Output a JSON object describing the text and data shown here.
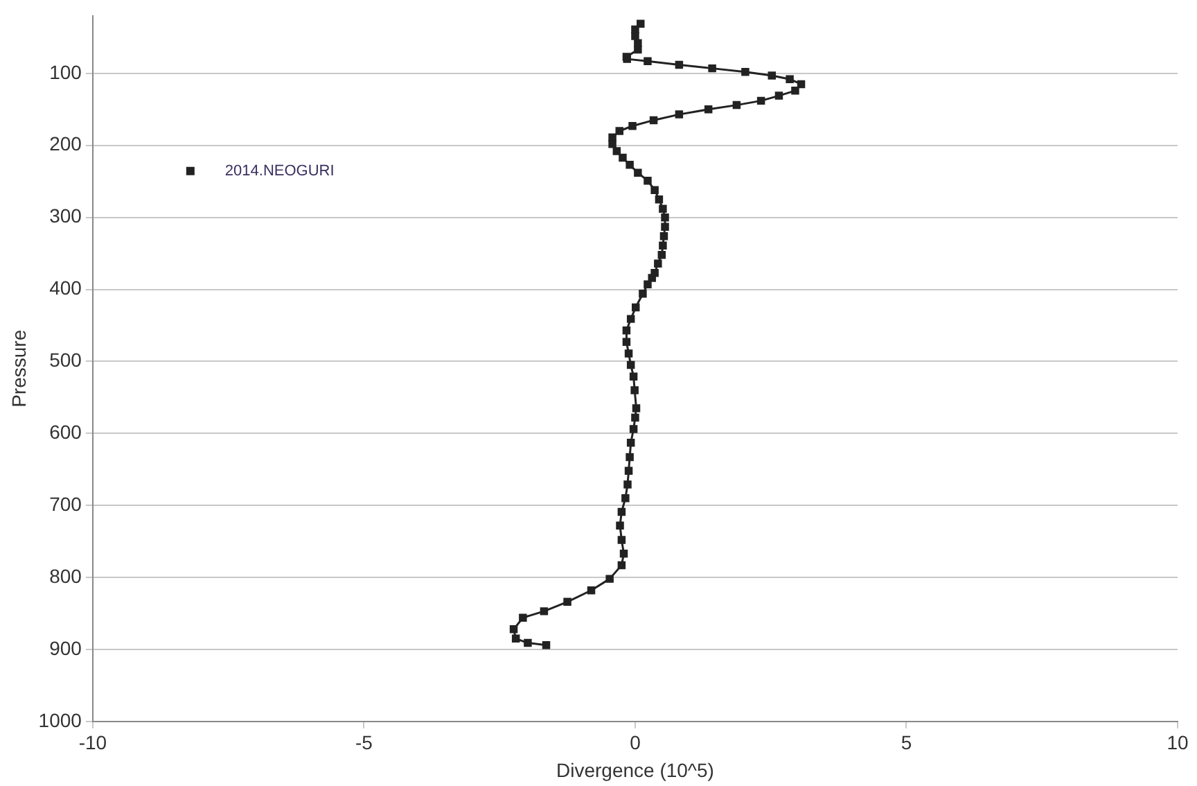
{
  "chart_data": {
    "type": "line",
    "xlabel": "Divergence (10^5)",
    "ylabel": "Pressure",
    "xlim": [
      -10,
      10
    ],
    "xticks": [
      -10,
      -5,
      0,
      5,
      10
    ],
    "ylim": [
      1000,
      20
    ],
    "yticks": [
      100,
      200,
      300,
      400,
      500,
      600,
      700,
      800,
      900,
      1000
    ],
    "grid": "y",
    "legend": "top left",
    "marker": "square",
    "line_style": "solid",
    "series": [
      {
        "name": "2014.NEOGURI",
        "color": "#222222",
        "x": [
          0.1,
          0.0,
          0.0,
          0.05,
          0.05,
          -0.16,
          -0.15,
          0.23,
          0.81,
          1.42,
          2.03,
          2.52,
          2.85,
          3.06,
          2.95,
          2.65,
          2.32,
          1.87,
          1.35,
          0.81,
          0.34,
          -0.05,
          -0.29,
          -0.42,
          -0.42,
          -0.34,
          -0.23,
          -0.1,
          0.05,
          0.23,
          0.36,
          0.44,
          0.51,
          0.55,
          0.55,
          0.53,
          0.51,
          0.49,
          0.42,
          0.36,
          0.31,
          0.23,
          0.14,
          0.01,
          -0.08,
          -0.16,
          -0.16,
          -0.12,
          -0.08,
          -0.03,
          -0.01,
          0.02,
          0.0,
          -0.03,
          -0.08,
          -0.1,
          -0.12,
          -0.14,
          -0.18,
          -0.25,
          -0.28,
          -0.25,
          -0.21,
          -0.25,
          -0.47,
          -0.81,
          -1.25,
          -1.68,
          -2.07,
          -2.24,
          -2.2,
          -1.98,
          -1.64
        ],
        "values": [
          31,
          39,
          48,
          58,
          67,
          77,
          80,
          83,
          88,
          93,
          98,
          103,
          108,
          115,
          124,
          131,
          138,
          144,
          150,
          157,
          165,
          173,
          180,
          189,
          198,
          208,
          217,
          227,
          238,
          249,
          262,
          275,
          288,
          300,
          313,
          326,
          339,
          352,
          364,
          377,
          384,
          393,
          406,
          425,
          441,
          457,
          473,
          489,
          505,
          521,
          540,
          565,
          578,
          594,
          613,
          633,
          652,
          671,
          690,
          709,
          728,
          748,
          767,
          783,
          802,
          818,
          834,
          847,
          856,
          872,
          885,
          891,
          894
        ]
      }
    ]
  }
}
